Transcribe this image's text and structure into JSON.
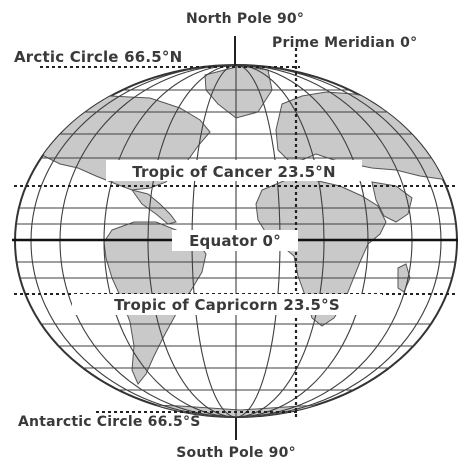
{
  "labels": {
    "north_pole": "North Pole 90°",
    "arctic_circle": "Arctic Circle 66.5°N",
    "prime_meridian": "Prime Meridian 0°",
    "tropic_of_cancer": "Tropic of Cancer 23.5°N",
    "equator": "Equator 0°",
    "tropic_of_capricorn": "Tropic of Capricorn 23.5°S",
    "antarctic_circle": "Antarctic Circle 66.5°S",
    "south_pole": "South Pole 90°"
  },
  "colors": {
    "ocean": "#ffffff",
    "land": "#c9c9c9",
    "lines": "#3f3f3f",
    "text": "#3a3a3a"
  }
}
